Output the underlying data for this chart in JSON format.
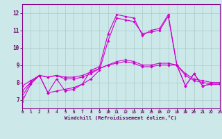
{
  "xlabel": "Windchill (Refroidissement éolien,°C)",
  "xlim": [
    0,
    23
  ],
  "ylim": [
    6.5,
    12.5
  ],
  "yticks": [
    7,
    8,
    9,
    10,
    11,
    12
  ],
  "xticks": [
    0,
    1,
    2,
    3,
    4,
    5,
    6,
    7,
    8,
    9,
    10,
    11,
    12,
    13,
    14,
    15,
    16,
    17,
    18,
    19,
    20,
    21,
    22,
    23
  ],
  "bg_color": "#cce8e8",
  "line_color": "#cc00cc",
  "grid_color": "#aacccc",
  "lines": [
    {
      "x": [
        0,
        1,
        2,
        3,
        4,
        5,
        6,
        7,
        8,
        9,
        10,
        11,
        12,
        13,
        14,
        15,
        16,
        17,
        18,
        19,
        20,
        21,
        22,
        23
      ],
      "y": [
        6.9,
        7.9,
        8.4,
        7.4,
        8.2,
        7.5,
        7.6,
        7.9,
        8.7,
        8.9,
        10.8,
        11.9,
        11.8,
        11.7,
        10.7,
        11.0,
        11.1,
        11.9,
        9.0,
        7.8,
        8.5,
        7.8,
        7.9,
        7.9
      ]
    },
    {
      "x": [
        0,
        1,
        2,
        3,
        4,
        5,
        6,
        7,
        8,
        9,
        10,
        11,
        12,
        13,
        14,
        15,
        16,
        17,
        18,
        19,
        20,
        21,
        22,
        23
      ],
      "y": [
        7.2,
        8.0,
        8.4,
        8.3,
        8.4,
        8.2,
        8.2,
        8.3,
        8.5,
        8.8,
        9.0,
        9.2,
        9.3,
        9.2,
        9.0,
        9.0,
        9.1,
        9.1,
        9.0,
        8.4,
        8.1,
        8.0,
        7.9,
        7.9
      ]
    },
    {
      "x": [
        0,
        1,
        2,
        3,
        4,
        5,
        6,
        7,
        8,
        9,
        10,
        11,
        12,
        13,
        14,
        15,
        16,
        17,
        18,
        19,
        20,
        21,
        22,
        23
      ],
      "y": [
        7.5,
        8.0,
        8.4,
        8.3,
        8.4,
        8.3,
        8.3,
        8.4,
        8.6,
        8.8,
        9.0,
        9.1,
        9.2,
        9.1,
        8.9,
        8.9,
        9.0,
        9.0,
        9.0,
        8.5,
        8.2,
        8.1,
        8.0,
        8.0
      ]
    },
    {
      "x": [
        0,
        1,
        2,
        3,
        4,
        5,
        6,
        7,
        8,
        9,
        10,
        11,
        12,
        13,
        14,
        15,
        16,
        17,
        18,
        19,
        20,
        21,
        22,
        23
      ],
      "y": [
        7.8,
        8.1,
        8.4,
        7.4,
        7.5,
        7.6,
        7.7,
        7.9,
        8.2,
        8.7,
        10.4,
        11.7,
        11.6,
        11.5,
        10.8,
        10.9,
        11.0,
        11.8,
        9.0,
        7.8,
        8.5,
        7.8,
        7.9,
        7.9
      ]
    }
  ]
}
